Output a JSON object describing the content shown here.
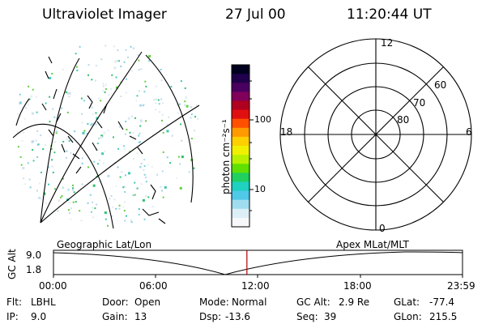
{
  "header": {
    "instrument": "Ultraviolet Imager",
    "date": "27 Jul 00",
    "time": "11:20:44 UT"
  },
  "colorbar": {
    "unit": "photon cm⁻²s⁻¹",
    "ticks": [
      {
        "label": "100",
        "value": 100
      },
      {
        "label": "10",
        "value": 10
      }
    ],
    "colors": [
      "#000020",
      "#20004a",
      "#4a0060",
      "#80005a",
      "#b00020",
      "#e01010",
      "#ff5000",
      "#ff9a00",
      "#ffd000",
      "#f0f000",
      "#b8f000",
      "#60e000",
      "#20d060",
      "#20d0c0",
      "#50c8e8",
      "#a0dcf0",
      "#dceef6",
      "#f6f8fa"
    ]
  },
  "polar_plot": {
    "labels": {
      "top": "12",
      "bottom": "0",
      "left": "18",
      "right": "6"
    },
    "rings": [
      {
        "label": "60",
        "value": 60
      },
      {
        "label": "70",
        "value": 70
      },
      {
        "label": "80",
        "value": 80
      }
    ]
  },
  "timeline": {
    "ylabel": "GC Alt",
    "yticks": [
      "9.0",
      "1.8"
    ],
    "left_label": "Geographic Lat/Lon",
    "right_label": "Apex MLat/MLT",
    "xticks": [
      "00:00",
      "06:00",
      "12:00",
      "18:00",
      "23:59"
    ],
    "current_time_hours": 11.35,
    "marker_color": "#b00000"
  },
  "status": {
    "row1": [
      {
        "key": "Flt:",
        "value": "LBHL"
      },
      {
        "key": "Door:",
        "value": "Open"
      },
      {
        "key": "Mode:",
        "value": "Normal"
      },
      {
        "key": "GC Alt:",
        "value": "2.9 Re"
      },
      {
        "key": "GLat:",
        "value": "-77.4"
      }
    ],
    "row2": [
      {
        "key": "IP:",
        "value": "9.0"
      },
      {
        "key": "Gain:",
        "value": "13"
      },
      {
        "key": "Dsp:",
        "value": "-13.6"
      },
      {
        "key": "Seq:",
        "value": "39"
      },
      {
        "key": "GLon:",
        "value": "215.5"
      }
    ]
  }
}
